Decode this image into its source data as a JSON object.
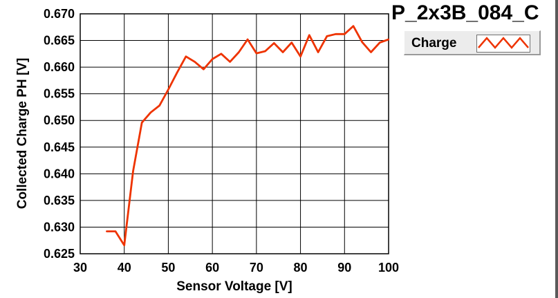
{
  "chart_data": {
    "type": "line",
    "title": "P_2x3B_084_C",
    "xlabel": "Sensor Voltage [V]",
    "ylabel": "Collected Charge PH [V]",
    "xlim": [
      30,
      100
    ],
    "ylim": [
      0.625,
      0.67
    ],
    "xticks": [
      30,
      40,
      50,
      60,
      70,
      80,
      90,
      100
    ],
    "yticks": [
      "0.625",
      "0.630",
      "0.635",
      "0.640",
      "0.645",
      "0.650",
      "0.655",
      "0.660",
      "0.665",
      "0.670"
    ],
    "grid": true,
    "legend_position": "top-right",
    "series": [
      {
        "name": "Charge",
        "color": "#ee3300",
        "x": [
          36,
          38,
          40,
          42,
          44,
          46,
          48,
          50,
          52,
          54,
          56,
          58,
          60,
          62,
          64,
          66,
          68,
          70,
          72,
          74,
          76,
          78,
          80,
          82,
          84,
          86,
          88,
          90,
          92,
          94,
          96,
          98,
          100
        ],
        "y": [
          0.6292,
          0.6292,
          0.6266,
          0.6405,
          0.6496,
          0.6515,
          0.6528,
          0.6558,
          0.659,
          0.662,
          0.661,
          0.6596,
          0.6615,
          0.6625,
          0.661,
          0.6628,
          0.6652,
          0.6626,
          0.663,
          0.6645,
          0.6628,
          0.6646,
          0.662,
          0.666,
          0.6628,
          0.6658,
          0.6662,
          0.6662,
          0.6677,
          0.6647,
          0.6628,
          0.6646,
          0.6652
        ]
      }
    ]
  }
}
